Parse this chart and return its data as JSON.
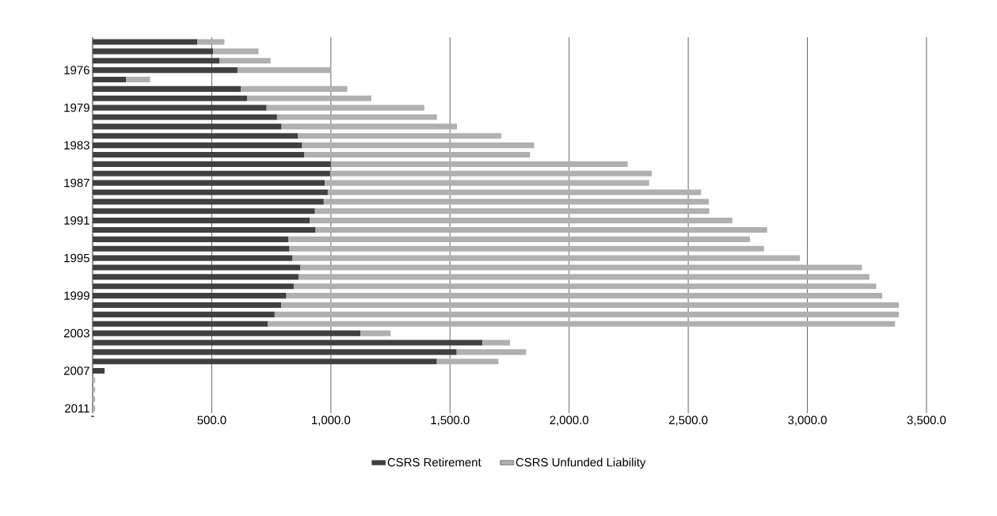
{
  "chart_data": {
    "type": "bar",
    "orientation": "horizontal",
    "stacked": true,
    "categories": [
      null,
      null,
      null,
      "1976",
      null,
      null,
      null,
      "1979",
      null,
      null,
      null,
      "1983",
      null,
      null,
      null,
      "1987",
      null,
      null,
      null,
      "1991",
      null,
      null,
      null,
      "1995",
      null,
      null,
      null,
      "1999",
      null,
      null,
      null,
      "2003",
      null,
      null,
      null,
      "2007",
      null,
      null,
      null,
      "2011"
    ],
    "series": [
      {
        "name": "CSRS Retirement",
        "color": "#404040",
        "values": [
          440,
          506,
          533,
          608,
          141,
          622,
          648,
          730,
          774,
          793,
          861,
          879,
          889,
          1000,
          997,
          974,
          987,
          970,
          933,
          911,
          936,
          822,
          826,
          839,
          872,
          864,
          844,
          813,
          792,
          764,
          736,
          1124,
          1636,
          1528,
          1445,
          50,
          null,
          null,
          null,
          null
        ]
      },
      {
        "name": "CSRS Unfunded Liability",
        "color": "#b0b0b0",
        "values": [
          113,
          190,
          214,
          392,
          100,
          447,
          522,
          662,
          671,
          736,
          854,
          974,
          947,
          1246,
          1350,
          1362,
          1567,
          1616,
          1655,
          1774,
          1895,
          1937,
          1992,
          2130,
          2357,
          2396,
          2445,
          2501,
          2592,
          2620,
          2632,
          127,
          116,
          291,
          258,
          0,
          10,
          10,
          10,
          10
        ]
      }
    ],
    "xlim": [
      0,
      3500
    ],
    "xticks": [
      {
        "value": 0,
        "label": "-"
      },
      {
        "value": 500,
        "label": "500.0"
      },
      {
        "value": 1000,
        "label": "1,000.0"
      },
      {
        "value": 1500,
        "label": "1,500.0"
      },
      {
        "value": 2000,
        "label": "2,000.0"
      },
      {
        "value": 2500,
        "label": "2,500.0"
      },
      {
        "value": 3000,
        "label": "3,000.0"
      },
      {
        "value": 3500,
        "label": "3,500.0"
      }
    ],
    "grid": "x",
    "legend": "bottom"
  }
}
